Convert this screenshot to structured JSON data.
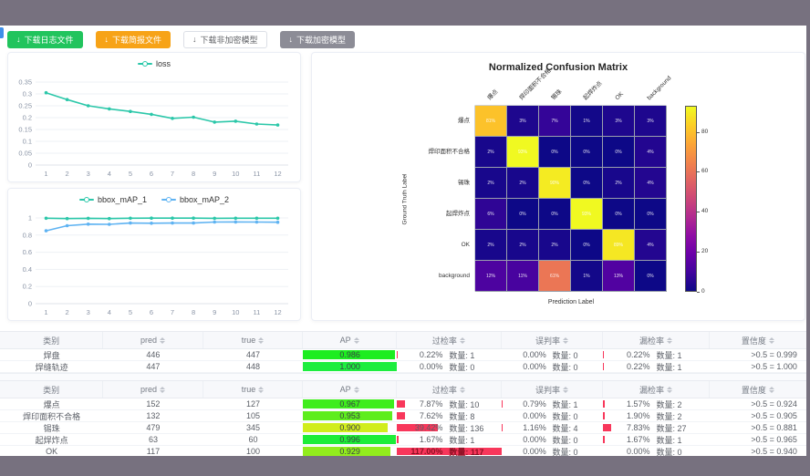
{
  "frame": {
    "color": "#77717f"
  },
  "edge_handle": {
    "color": "#3f8fe8"
  },
  "toolbar": {
    "buttons": [
      {
        "label": "下载日志文件",
        "variant": "success",
        "bg": "#21c45d",
        "icon": "download"
      },
      {
        "label": "下载简报文件",
        "variant": "warning",
        "bg": "#f7a317",
        "icon": "download"
      },
      {
        "label": "下载非加密模型",
        "variant": "plain",
        "bg": "#ffffff",
        "icon": "download"
      },
      {
        "label": "下载加密模型",
        "variant": "info",
        "bg": "#8c8c96",
        "icon": "download"
      }
    ]
  },
  "chart_data": [
    {
      "type": "line",
      "name": "loss-chart",
      "x": [
        1,
        2,
        3,
        4,
        5,
        6,
        7,
        8,
        9,
        10,
        11,
        12
      ],
      "series": [
        {
          "name": "loss",
          "color": "#2bc7a9",
          "values": [
            0.305,
            0.276,
            0.25,
            0.237,
            0.226,
            0.214,
            0.197,
            0.202,
            0.181,
            0.185,
            0.173,
            0.169
          ]
        }
      ],
      "ylim": [
        0,
        0.35
      ],
      "yticks": [
        0,
        0.05,
        0.1,
        0.15,
        0.2,
        0.25,
        0.3,
        0.35
      ],
      "legend_position": "top",
      "grid": true
    },
    {
      "type": "line",
      "name": "map-chart",
      "x": [
        1,
        2,
        3,
        4,
        5,
        6,
        7,
        8,
        9,
        10,
        11,
        12
      ],
      "series": [
        {
          "name": "bbox_mAP_1",
          "color": "#2bc7a9",
          "values": [
            0.997,
            0.993,
            0.996,
            0.993,
            0.997,
            0.998,
            0.998,
            0.998,
            0.996,
            0.997,
            0.997,
            0.997
          ]
        },
        {
          "name": "bbox_mAP_2",
          "color": "#5fb3f2",
          "values": [
            0.85,
            0.91,
            0.928,
            0.925,
            0.94,
            0.938,
            0.94,
            0.94,
            0.952,
            0.953,
            0.952,
            0.95
          ]
        }
      ],
      "ylim": [
        0,
        1
      ],
      "yticks": [
        0,
        0.2,
        0.4,
        0.6,
        0.8,
        1
      ],
      "legend_position": "top",
      "grid": true
    },
    {
      "type": "heatmap",
      "name": "confusion-matrix",
      "title": "Normalized Confusion Matrix",
      "xlabel": "Prediction Label",
      "ylabel": "Ground Truth Label",
      "labels": [
        "爆点",
        "焊印面积不合格",
        "锡珠",
        "起焊炸点",
        "OK",
        "background"
      ],
      "matrix": [
        [
          81,
          3,
          7,
          1,
          3,
          3
        ],
        [
          2,
          93,
          0,
          0,
          0,
          4
        ],
        [
          2,
          2,
          90,
          0,
          2,
          4
        ],
        [
          6,
          0,
          0,
          93,
          0,
          0
        ],
        [
          2,
          2,
          2,
          0,
          89,
          4
        ],
        [
          12,
          11,
          61,
          1,
          13,
          0
        ]
      ],
      "unit": "%",
      "colormap": "plasma",
      "vmin": 0,
      "vmax": 93,
      "colorbar_ticks": [
        0,
        20,
        40,
        60,
        80
      ]
    }
  ],
  "tables": {
    "header": {
      "category": "类别",
      "pred": "pred",
      "true": "true",
      "ap": "AP",
      "over": "过检率",
      "mis": "误判率",
      "miss": "漏检率",
      "conf": "置信度"
    },
    "count_label": "数量:",
    "bar_red": "#f8375b",
    "groups": [
      {
        "rows": [
          {
            "category": "焊盘",
            "pred": "446",
            "true": "447",
            "ap": "0.986",
            "over_pct": "0.22%",
            "over_n": "1",
            "mis_pct": "0.00%",
            "mis_n": "0",
            "miss_pct": "0.22%",
            "miss_n": "1",
            "conf": ">0.5 = 0.999"
          },
          {
            "category": "焊缝轨迹",
            "pred": "447",
            "true": "448",
            "ap": "1.000",
            "over_pct": "0.00%",
            "over_n": "0",
            "mis_pct": "0.00%",
            "mis_n": "0",
            "miss_pct": "0.22%",
            "miss_n": "1",
            "conf": ">0.5 = 1.000"
          }
        ]
      },
      {
        "rows": [
          {
            "category": "爆点",
            "pred": "152",
            "true": "127",
            "ap": "0.967",
            "over_pct": "7.87%",
            "over_n": "10",
            "mis_pct": "0.79%",
            "mis_n": "1",
            "miss_pct": "1.57%",
            "miss_n": "2",
            "conf": ">0.5 = 0.924"
          },
          {
            "category": "焊印面积不合格",
            "pred": "132",
            "true": "105",
            "ap": "0.953",
            "over_pct": "7.62%",
            "over_n": "8",
            "mis_pct": "0.00%",
            "mis_n": "0",
            "miss_pct": "1.90%",
            "miss_n": "2",
            "conf": ">0.5 = 0.905"
          },
          {
            "category": "锡珠",
            "pred": "479",
            "true": "345",
            "ap": "0.900",
            "over_pct": "39.42%",
            "over_n": "136",
            "mis_pct": "1.16%",
            "mis_n": "4",
            "miss_pct": "7.83%",
            "miss_n": "27",
            "conf": ">0.5 = 0.881"
          },
          {
            "category": "起焊炸点",
            "pred": "63",
            "true": "60",
            "ap": "0.996",
            "over_pct": "1.67%",
            "over_n": "1",
            "mis_pct": "0.00%",
            "mis_n": "0",
            "miss_pct": "1.67%",
            "miss_n": "1",
            "conf": ">0.5 = 0.965"
          },
          {
            "category": "OK",
            "pred": "117",
            "true": "100",
            "ap": "0.929",
            "over_pct": "117.00%",
            "over_n": "117",
            "mis_pct": "0.00%",
            "mis_n": "0",
            "miss_pct": "0.00%",
            "miss_n": "0",
            "conf": ">0.5 = 0.940"
          }
        ]
      }
    ]
  }
}
